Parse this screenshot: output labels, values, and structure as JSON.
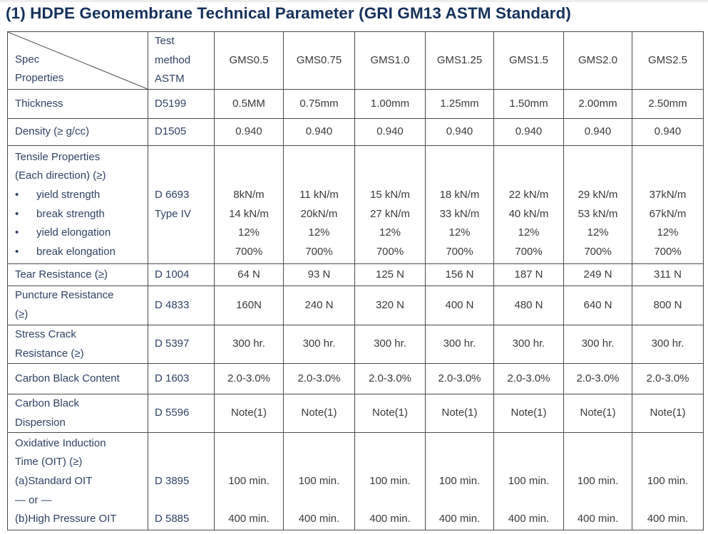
{
  "title": "(1) HDPE Geomembrane Technical Parameter (GRI GM13 ASTM Standard)",
  "header": {
    "spec_properties": [
      "Spec",
      "Properties"
    ],
    "test_method": [
      "Test",
      "method",
      "ASTM"
    ],
    "grades": [
      "GMS0.5",
      "GMS0.75",
      "GMS1.0",
      "GMS1.25",
      "GMS1.5",
      "GMS2.0",
      "GMS2.5"
    ]
  },
  "rows": [
    {
      "property": [
        "Thickness"
      ],
      "method": [
        "D5199"
      ],
      "values": [
        [
          "0.5MM"
        ],
        [
          "0.75mm"
        ],
        [
          "1.00mm"
        ],
        [
          "1.25mm"
        ],
        [
          "1.50mm"
        ],
        [
          "2.00mm"
        ],
        [
          "2.50mm"
        ]
      ]
    },
    {
      "property": [
        "Density (≥   g/cc)"
      ],
      "method": [
        "D1505"
      ],
      "values": [
        [
          "0.940"
        ],
        [
          "0.940"
        ],
        [
          "0.940"
        ],
        [
          "0.940"
        ],
        [
          "0.940"
        ],
        [
          "0.940"
        ],
        [
          "0.940"
        ]
      ]
    },
    {
      "property": [
        "Tensile Properties",
        "(Each direction) (≥)",
        "•|yield strength",
        "•|break strength",
        "•|yield elongation",
        "•|break elongation"
      ],
      "method": [
        "",
        "",
        "D 6693",
        "Type IV",
        "",
        ""
      ],
      "values": [
        [
          "",
          "",
          "8kN/m",
          "14 kN/m",
          "12%",
          "700%"
        ],
        [
          "",
          "",
          "11 kN/m",
          "20kN/m",
          "12%",
          "700%"
        ],
        [
          "",
          "",
          "15 kN/m",
          "27 kN/m",
          "12%",
          "700%"
        ],
        [
          "",
          "",
          "18 kN/m",
          "33 kN/m",
          "12%",
          "700%"
        ],
        [
          "",
          "",
          "22 kN/m",
          "40 kN/m",
          "12%",
          "700%"
        ],
        [
          "",
          "",
          "29 kN/m",
          "53 kN/m",
          "12%",
          "700%"
        ],
        [
          "",
          "",
          "37kN/m",
          "67kN/m",
          "12%",
          "700%"
        ]
      ]
    },
    {
      "property": [
        "Tear Resistance (≥)"
      ],
      "method": [
        "D 1004"
      ],
      "values": [
        [
          "64 N"
        ],
        [
          "93 N"
        ],
        [
          "125 N"
        ],
        [
          "156 N"
        ],
        [
          "187 N"
        ],
        [
          "249 N"
        ],
        [
          "311 N"
        ]
      ]
    },
    {
      "property": [
        "Puncture Resistance",
        "(≥)"
      ],
      "method": [
        "D 4833"
      ],
      "values": [
        [
          "160N"
        ],
        [
          "240 N"
        ],
        [
          "320 N"
        ],
        [
          "400 N"
        ],
        [
          "480 N"
        ],
        [
          "640 N"
        ],
        [
          "800 N"
        ]
      ]
    },
    {
      "property": [
        "Stress Crack",
        "Resistance (≥)"
      ],
      "method": [
        "D 5397"
      ],
      "values": [
        [
          "300 hr."
        ],
        [
          "300 hr."
        ],
        [
          "300 hr."
        ],
        [
          "300 hr."
        ],
        [
          "300 hr."
        ],
        [
          "300 hr."
        ],
        [
          "300 hr."
        ]
      ]
    },
    {
      "property": [
        "Carbon Black Content"
      ],
      "method": [
        "D 1603"
      ],
      "values": [
        [
          "2.0-3.0%"
        ],
        [
          "2.0-3.0%"
        ],
        [
          "2.0-3.0%"
        ],
        [
          "2.0-3.0%"
        ],
        [
          "2.0-3.0%"
        ],
        [
          "2.0-3.0%"
        ],
        [
          "2.0-3.0%"
        ]
      ]
    },
    {
      "property": [
        "Carbon Black",
        "Dispersion"
      ],
      "method": [
        "D 5596"
      ],
      "values": [
        [
          "Note(1)"
        ],
        [
          "Note(1)"
        ],
        [
          "Note(1)"
        ],
        [
          "Note(1)"
        ],
        [
          "Note(1)"
        ],
        [
          "Note(1)"
        ],
        [
          "Note(1)"
        ]
      ]
    },
    {
      "property": [
        "Oxidative Induction",
        "Time (OIT) (≥)",
        "(a)Standard  OIT",
        "— or —",
        "(b)High Pressure OIT"
      ],
      "method": [
        "",
        "",
        "D 3895",
        "",
        "D 5885"
      ],
      "values": [
        [
          "",
          "",
          "100 min.",
          "",
          "400 min."
        ],
        [
          "",
          "",
          "100 min.",
          "",
          "400 min."
        ],
        [
          "",
          "",
          "100 min.",
          "",
          "400 min."
        ],
        [
          "",
          "",
          "100 min.",
          "",
          "400 min."
        ],
        [
          "",
          "",
          "100 min.",
          "",
          "400 min."
        ],
        [
          "",
          "",
          "100 min.",
          "",
          "400 min."
        ],
        [
          "",
          "",
          "100 min.",
          "",
          "400 min."
        ]
      ]
    }
  ]
}
